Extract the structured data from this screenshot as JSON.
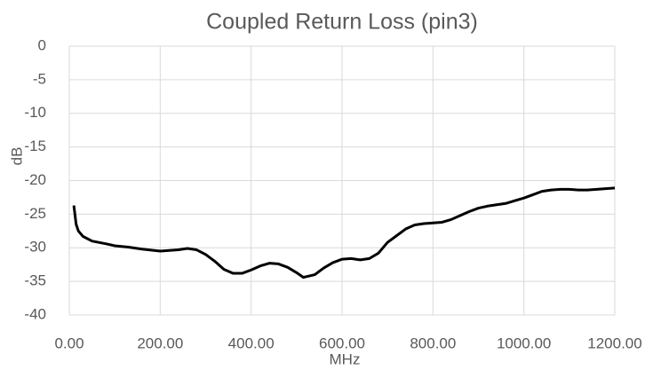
{
  "chart_data": {
    "type": "line",
    "title": "Coupled Return Loss (pin3)",
    "x_label": "MHz",
    "y_label": "dB",
    "x": [
      10,
      15,
      20,
      30,
      50,
      80,
      100,
      130,
      160,
      200,
      220,
      240,
      260,
      280,
      300,
      320,
      340,
      360,
      380,
      400,
      420,
      440,
      460,
      480,
      500,
      515,
      540,
      560,
      580,
      600,
      620,
      640,
      660,
      680,
      700,
      720,
      740,
      760,
      780,
      800,
      820,
      840,
      860,
      880,
      900,
      920,
      940,
      960,
      980,
      1000,
      1020,
      1040,
      1060,
      1080,
      1100,
      1120,
      1140,
      1160,
      1180,
      1200
    ],
    "series": [
      {
        "name": "pin3",
        "color": "#000000",
        "values": [
          -23.7,
          -26.5,
          -27.5,
          -28.3,
          -29,
          -29.4,
          -29.7,
          -29.9,
          -30.2,
          -30.5,
          -30.4,
          -30.3,
          -30.1,
          -30.3,
          -31,
          -32,
          -33.2,
          -33.8,
          -33.8,
          -33.3,
          -32.7,
          -32.3,
          -32.4,
          -32.9,
          -33.7,
          -34.4,
          -34,
          -33,
          -32.2,
          -31.7,
          -31.6,
          -31.8,
          -31.6,
          -30.8,
          -29.2,
          -28.2,
          -27.2,
          -26.6,
          -26.4,
          -26.3,
          -26.2,
          -25.8,
          -25.2,
          -24.6,
          -24.1,
          -23.8,
          -23.6,
          -23.4,
          -23,
          -22.6,
          -22.1,
          -21.6,
          -21.4,
          -21.3,
          -21.3,
          -21.4,
          -21.4,
          -21.3,
          -21.2,
          -21.1
        ]
      }
    ],
    "xlim": [
      0,
      1200
    ],
    "xticks": [
      {
        "value": 0,
        "label": "0.00"
      },
      {
        "value": 200,
        "label": "200.00"
      },
      {
        "value": 400,
        "label": "400.00"
      },
      {
        "value": 600,
        "label": "600.00"
      },
      {
        "value": 800,
        "label": "800.00"
      },
      {
        "value": 1000,
        "label": "1000.00"
      },
      {
        "value": 1200,
        "label": "1200.00"
      }
    ],
    "ylim": [
      -40,
      0
    ],
    "yticks": [
      0,
      -5,
      -10,
      -15,
      -20,
      -25,
      -30,
      -35,
      -40
    ],
    "grid": true
  }
}
